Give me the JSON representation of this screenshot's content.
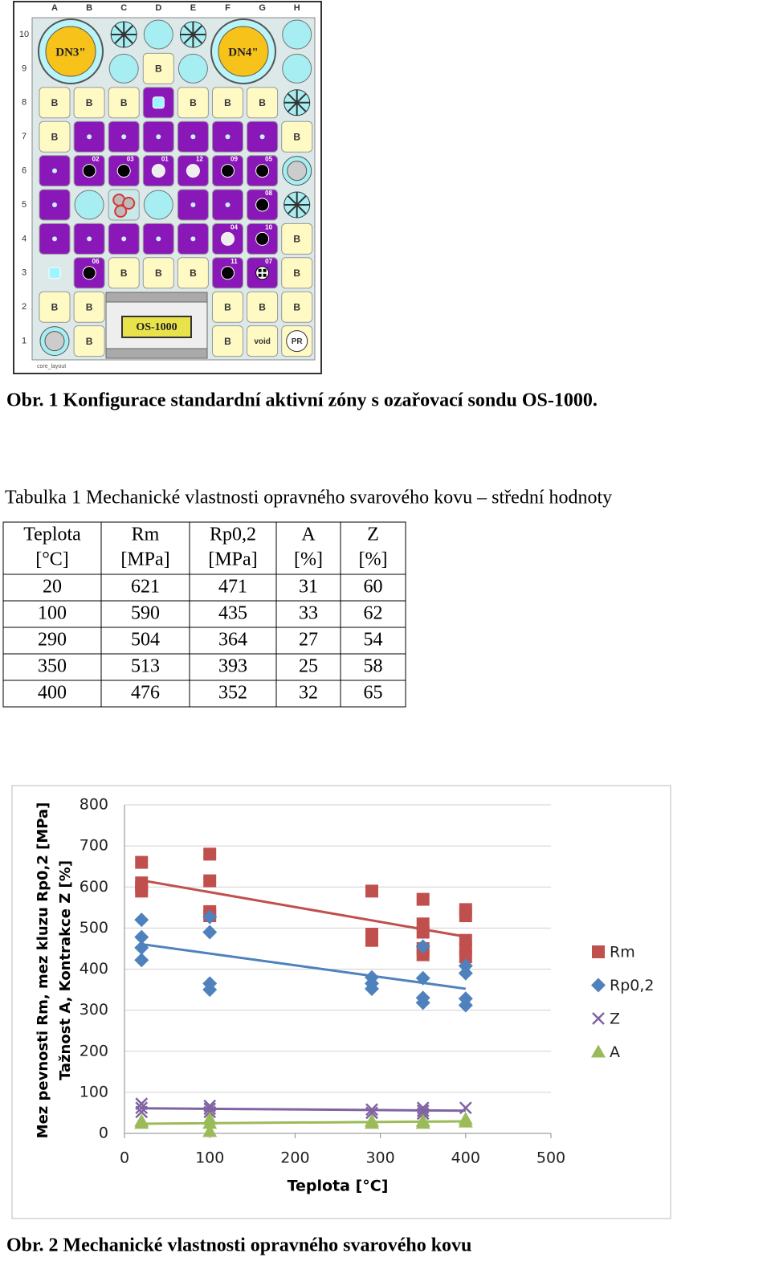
{
  "core": {
    "columns": [
      "A",
      "B",
      "C",
      "D",
      "E",
      "F",
      "G",
      "H"
    ],
    "rows": [
      10,
      9,
      8,
      7,
      6,
      5,
      4,
      3,
      2,
      1
    ],
    "grid": [
      [
        null,
        null,
        null,
        null,
        null,
        null,
        null,
        null
      ],
      [
        null,
        null,
        null,
        "B",
        null,
        null,
        null,
        null
      ],
      [
        "B",
        "B",
        "B",
        null,
        "B",
        "B",
        "B",
        null
      ],
      [
        "B",
        null,
        null,
        null,
        null,
        null,
        null,
        "B"
      ],
      [
        null,
        "02",
        "03",
        "01",
        "12",
        "09",
        "05",
        null
      ],
      [
        null,
        null,
        null,
        null,
        null,
        null,
        "08",
        null
      ],
      [
        null,
        null,
        null,
        null,
        null,
        "04",
        "10",
        "B"
      ],
      [
        null,
        "06",
        "B",
        "B",
        "B",
        "11",
        "07",
        "B"
      ],
      [
        "B",
        "B",
        null,
        null,
        null,
        "B",
        "B",
        "B"
      ],
      [
        null,
        "B",
        null,
        null,
        null,
        "B",
        "void",
        "PR"
      ]
    ],
    "dn3": "DN3\"",
    "dn4": "DN4\"",
    "probe": "OS-1000",
    "footer": "core_layout"
  },
  "caption1": "Obr. 1  Konfigurace standardní aktivní zóny s ozařovací sondu OS-1000.",
  "table_caption": "Tabulka 1  Mechanické vlastnosti opravného svarového kovu – střední hodnoty",
  "table": {
    "header": [
      [
        "Teplota",
        "[°C]"
      ],
      [
        "Rm",
        "[MPa]"
      ],
      [
        "Rp0,2",
        "[MPa]"
      ],
      [
        "A",
        "[%]"
      ],
      [
        "Z",
        "[%]"
      ]
    ],
    "rows": [
      [
        20,
        621,
        471,
        31,
        60
      ],
      [
        100,
        590,
        435,
        33,
        62
      ],
      [
        290,
        504,
        364,
        27,
        54
      ],
      [
        350,
        513,
        393,
        25,
        58
      ],
      [
        400,
        476,
        352,
        32,
        65
      ]
    ]
  },
  "chart_data": {
    "type": "scatter",
    "y_label": [
      "Mez pevnosti Rm, mez kluzu Rp0,2 [MPa]",
      "Tažnost  A, Kontrakce  Z [%]"
    ],
    "x_label": "Teplota [°C]",
    "xlim": [
      0,
      500
    ],
    "xticks": [
      0,
      100,
      200,
      300,
      400,
      500
    ],
    "ylim": [
      0,
      800
    ],
    "yticks": [
      0,
      100,
      200,
      300,
      400,
      500,
      600,
      700,
      800
    ],
    "grid": true,
    "legend": "right",
    "series": [
      {
        "name": "Rm",
        "color": "#c0504d",
        "marker": "square",
        "trendline": true,
        "x": [
          20,
          20,
          20,
          20,
          100,
          100,
          100,
          100,
          290,
          290,
          290,
          350,
          350,
          350,
          350,
          350,
          400,
          400,
          400,
          400,
          400
        ],
        "values": [
          660,
          610,
          600,
          590,
          680,
          615,
          540,
          530,
          590,
          485,
          470,
          570,
          510,
          490,
          450,
          435,
          545,
          530,
          470,
          450,
          430
        ]
      },
      {
        "name": "Rp0,2",
        "color": "#4f81bd",
        "marker": "diamond",
        "trendline": true,
        "x": [
          20,
          20,
          20,
          20,
          100,
          100,
          100,
          100,
          290,
          290,
          290,
          350,
          350,
          350,
          350,
          400,
          400,
          400,
          400
        ],
        "values": [
          520,
          478,
          452,
          422,
          527,
          490,
          365,
          350,
          380,
          365,
          352,
          455,
          378,
          330,
          318,
          408,
          390,
          328,
          312
        ]
      },
      {
        "name": "Z",
        "color": "#8064a2",
        "marker": "x",
        "trendline": true,
        "x": [
          20,
          20,
          20,
          100,
          100,
          100,
          290,
          290,
          350,
          350,
          350,
          400
        ],
        "values": [
          72,
          62,
          52,
          67,
          60,
          52,
          58,
          50,
          62,
          55,
          48,
          62
        ]
      },
      {
        "name": "A",
        "color": "#9bbb59",
        "marker": "triangle",
        "trendline": true,
        "x": [
          20,
          20,
          100,
          100,
          100,
          290,
          290,
          350,
          350,
          400,
          400
        ],
        "values": [
          30,
          25,
          35,
          25,
          5,
          30,
          25,
          30,
          25,
          35,
          28
        ]
      }
    ],
    "caption": "Obr. 2 Mechanické vlastnosti opravného svarového kovu"
  }
}
